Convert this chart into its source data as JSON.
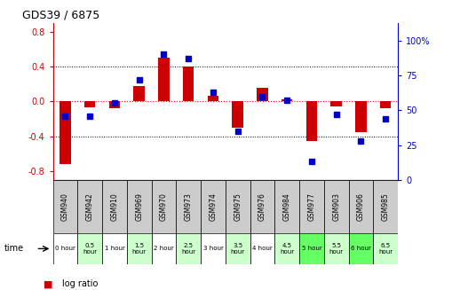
{
  "title": "GDS39 / 6875",
  "samples": [
    "GSM940",
    "GSM942",
    "GSM910",
    "GSM969",
    "GSM970",
    "GSM973",
    "GSM974",
    "GSM975",
    "GSM976",
    "GSM984",
    "GSM977",
    "GSM903",
    "GSM906",
    "GSM985"
  ],
  "time_labels": [
    "0 hour",
    "0.5\nhour",
    "1 hour",
    "1.5\nhour",
    "2 hour",
    "2.5\nhour",
    "3 hour",
    "3.5\nhour",
    "4 hour",
    "4.5\nhour",
    "5 hour",
    "5.5\nhour",
    "6 hour",
    "6.5\nhour"
  ],
  "log_ratio": [
    -0.72,
    -0.07,
    -0.08,
    0.18,
    0.5,
    0.4,
    0.07,
    -0.3,
    0.16,
    0.02,
    -0.45,
    -0.06,
    -0.35,
    -0.08
  ],
  "percentile": [
    46,
    46,
    55,
    72,
    90,
    87,
    63,
    35,
    60,
    57,
    13,
    47,
    28,
    44
  ],
  "bar_color": "#cc0000",
  "dot_color": "#0000cc",
  "bg_color": "#ffffff",
  "left_yticks": [
    -0.8,
    -0.4,
    0.0,
    0.4,
    0.8
  ],
  "right_yticks": [
    0,
    25,
    50,
    75,
    100
  ],
  "ylim_left": [
    -0.9,
    0.9
  ],
  "ylim_right": [
    0,
    112.5
  ],
  "time_colors": [
    "#ffffff",
    "#ccffcc",
    "#ffffff",
    "#ccffcc",
    "#ffffff",
    "#ccffcc",
    "#ffffff",
    "#ccffcc",
    "#ffffff",
    "#ccffcc",
    "#66ff66",
    "#ccffcc",
    "#66ff66",
    "#ccffcc"
  ],
  "header_color": "#cccccc",
  "legend_bar_color": "#cc0000",
  "legend_dot_color": "#0000cc"
}
